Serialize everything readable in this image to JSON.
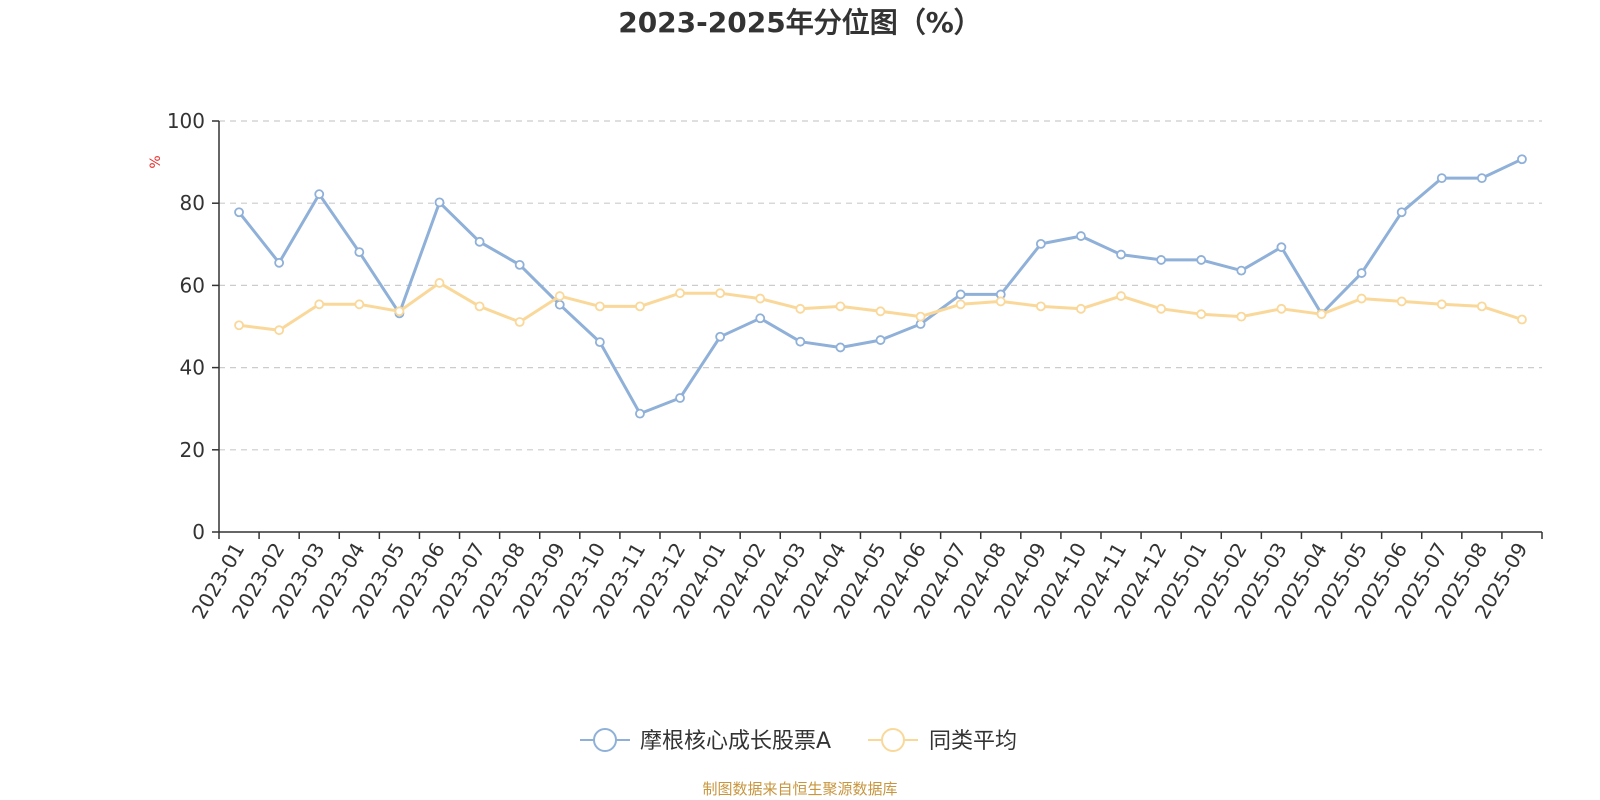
{
  "colors": {
    "series_primary": "#8fb0d8",
    "series_average": "#f9d89a",
    "grid": "#cccccc",
    "axis": "#333333",
    "unit": "#e8312f",
    "source": "#c8963e"
  },
  "chart_data": {
    "type": "line",
    "title": "2023-2025年分位图（%）",
    "ylabel": "%",
    "ylim": [
      0,
      100
    ],
    "yticks": [
      0,
      20,
      40,
      60,
      80,
      100
    ],
    "grid": true,
    "legend_position": "bottom",
    "categories": [
      "2023-01",
      "2023-02",
      "2023-03",
      "2023-04",
      "2023-05",
      "2023-06",
      "2023-07",
      "2023-08",
      "2023-09",
      "2023-10",
      "2023-11",
      "2023-12",
      "2024-01",
      "2024-02",
      "2024-03",
      "2024-04",
      "2024-05",
      "2024-06",
      "2024-07",
      "2024-08",
      "2024-09",
      "2024-10",
      "2024-11",
      "2024-12",
      "2025-01",
      "2025-02",
      "2025-03",
      "2025-04",
      "2025-05",
      "2025-06",
      "2025-07",
      "2025-08",
      "2025-09"
    ],
    "series": [
      {
        "name": "摩根核心成长股票A",
        "values": [
          77.8,
          65.5,
          82.2,
          68.1,
          53.2,
          80.2,
          70.6,
          65.0,
          55.3,
          46.2,
          28.8,
          32.6,
          47.5,
          52.0,
          46.3,
          44.9,
          46.7,
          50.6,
          57.8,
          57.8,
          70.1,
          72.0,
          67.5,
          66.2,
          66.2,
          63.6,
          69.3,
          53.1,
          63.0,
          77.8,
          86.1,
          86.1,
          90.7
        ]
      },
      {
        "name": "同类平均",
        "values": [
          50.3,
          49.1,
          55.4,
          55.4,
          53.7,
          60.6,
          54.9,
          51.1,
          57.4,
          54.9,
          54.9,
          58.1,
          58.1,
          56.8,
          54.3,
          54.9,
          53.7,
          52.4,
          55.4,
          56.1,
          54.9,
          54.3,
          57.4,
          54.3,
          53.0,
          52.4,
          54.3,
          53.0,
          56.8,
          56.1,
          55.4,
          54.9,
          51.7
        ]
      }
    ]
  },
  "footer": {
    "source_text": "制图数据来自恒生聚源数据库"
  }
}
